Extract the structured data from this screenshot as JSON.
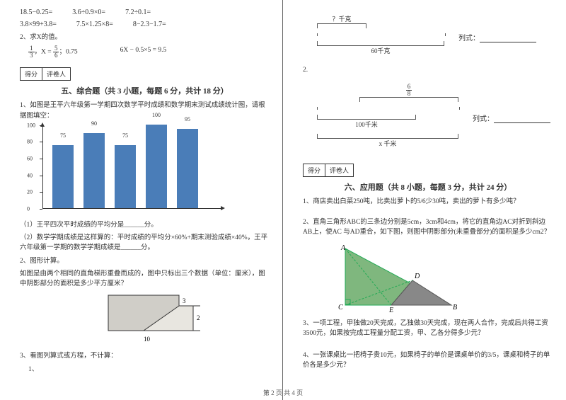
{
  "left": {
    "eq1": [
      "18.5−0.25=",
      "3.6÷0.9×0=",
      "7.2÷0.1="
    ],
    "eq2": [
      "3.8×99+3.8=",
      "7.5×1.25×8=",
      "8−2.3−1.7="
    ],
    "findX": "2、求X的值。",
    "findX_a_pre": "，X =",
    "findX_a_post": "；0.75",
    "findX_b": "6X − 0.5×5 = 9.5",
    "score1": "得分",
    "score2": "评卷人",
    "sec5": "五、综合题（共 3 小题，每题 6 分，共计 18 分）",
    "q1": "1、如图是王平六年级第一学期四次数学平时成绩和数学期末测试成绩统计图，请根据图填空：",
    "chart": {
      "categories": [
        "",
        "",
        "",
        "",
        ""
      ],
      "values": [
        75,
        90,
        75,
        100,
        95
      ],
      "labels": [
        "75",
        "90",
        "75",
        "100",
        "95"
      ],
      "ymax": 100,
      "ytick_step": 20,
      "bar_color": "#4a7db8",
      "yticks": [
        0,
        20,
        40,
        60,
        80,
        100
      ]
    },
    "q1a": "（1）王平四次平时成绩的平均分是______分。",
    "q1b": "（2）数学学期成绩是这样算的：平时成绩的平均分×60%+期末测验成绩×40%，王平六年级第一学期的数学学期成绩是______分。",
    "q2": "2、图形计算。",
    "q2txt": "如图是由两个相同的直角梯形重叠而成的，图中只标出三个数据（单位：厘米），图中阴影部分的面积是多少平方厘米？",
    "trap": {
      "a": "3",
      "b": "2",
      "c": "10"
    },
    "q3": "3、看图列算式或方程，不计算：",
    "q3_sub": "1、"
  },
  "right": {
    "dim1_top": "？千克",
    "dim1_bottom": "60千克",
    "liexp": "列式：",
    "dim2_n": "2.",
    "dim2_top_n": "6",
    "dim2_top_d": "8",
    "dim2_mid": "100千米",
    "dim2_bottom": "x 千米",
    "score1": "得分",
    "score2": "评卷人",
    "sec6": "六、应用题（共 8 小题，每题 3 分，共计 24 分）",
    "q1": "1、商店卖出白菜250吨，比卖出萝卜的5/6少30吨，卖出的萝卜有多少吨？",
    "q2": "2、直角三角形ABC的三条边分别是5cm，3cm和4cm，将它的直角边AC对折到斜边AB上，使AC 与AD重合，如下图，则图中阴影部分(未重叠部分)的面积是多少cm2？",
    "tri": {
      "A": "A",
      "B": "B",
      "C": "C",
      "D": "D",
      "E": "E"
    },
    "q3": "3、一项工程，甲独做20天完成，乙独做30天完成，现在两人合作，完成后共得工资3500元，如果按完成工程量分配工资，甲、乙各分得多少元？",
    "q4": "4、一张课桌比一把椅子贵10元，如果椅子的单价是课桌单价的3/5，课桌和椅子的单价各是多少元？"
  },
  "footer": "第 2 页 共 4 页"
}
